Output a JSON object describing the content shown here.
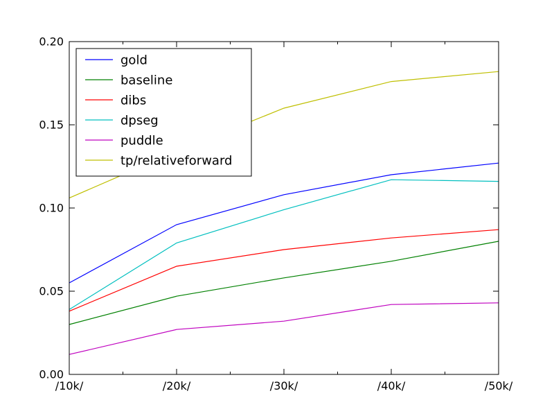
{
  "chart_data": {
    "type": "line",
    "title": "",
    "xlabel": "",
    "ylabel": "",
    "categories": [
      "/10k/",
      "/20k/",
      "/30k/",
      "/40k/",
      "/50k/"
    ],
    "ylim": [
      0.0,
      0.2
    ],
    "yticks": [
      0.0,
      0.05,
      0.1,
      0.15,
      0.2
    ],
    "ytick_labels": [
      "0.00",
      "0.05",
      "0.10",
      "0.15",
      "0.20"
    ],
    "grid": false,
    "legend_position": "top-left",
    "series": [
      {
        "name": "gold",
        "color": "#0000ff",
        "values": [
          0.055,
          0.09,
          0.108,
          0.12,
          0.127
        ]
      },
      {
        "name": "baseline",
        "color": "#008000",
        "values": [
          0.03,
          0.047,
          0.058,
          0.068,
          0.08
        ]
      },
      {
        "name": "dibs",
        "color": "#ff0000",
        "values": [
          0.038,
          0.065,
          0.075,
          0.082,
          0.087
        ]
      },
      {
        "name": "dpseg",
        "color": "#00bfbf",
        "values": [
          0.039,
          0.079,
          0.099,
          0.117,
          0.116
        ]
      },
      {
        "name": "puddle",
        "color": "#bf00bf",
        "values": [
          0.012,
          0.027,
          0.032,
          0.042,
          0.043
        ]
      },
      {
        "name": "tp/relativeforward",
        "color": "#bfbf00",
        "values": [
          0.106,
          0.134,
          0.16,
          0.176,
          0.182
        ]
      }
    ]
  }
}
